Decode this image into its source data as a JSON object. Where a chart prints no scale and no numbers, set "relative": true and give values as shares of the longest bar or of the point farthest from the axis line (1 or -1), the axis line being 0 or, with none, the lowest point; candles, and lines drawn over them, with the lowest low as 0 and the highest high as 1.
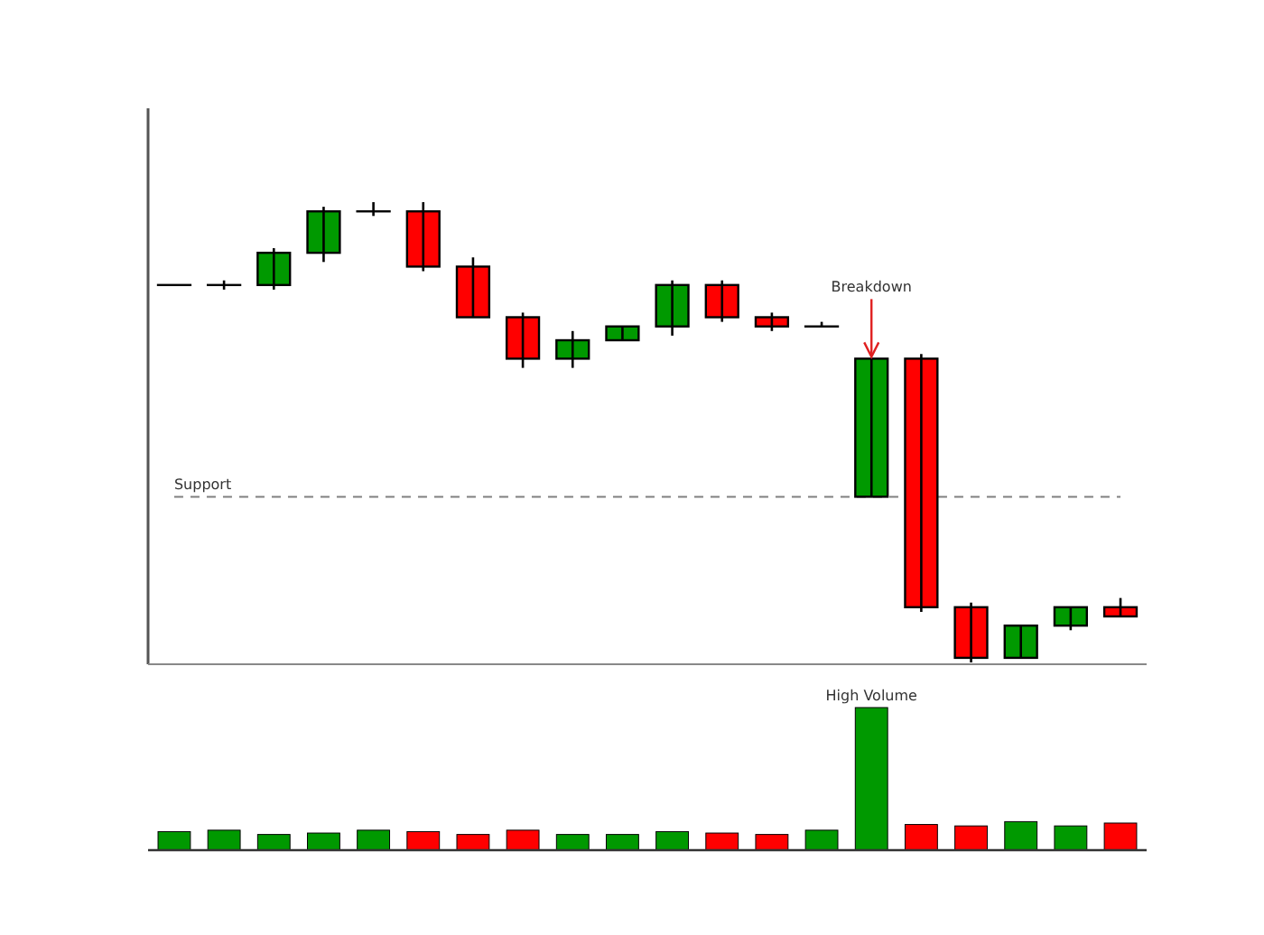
{
  "chart_data": [
    {
      "type": "candlestick",
      "relative": true,
      "categories": [
        null,
        null,
        null,
        null,
        null,
        null,
        null,
        null,
        null,
        null,
        null,
        null,
        null,
        null,
        null,
        null,
        null,
        null,
        null,
        null
      ],
      "ohlc": [
        [
          0.82,
          0.82,
          0.82,
          0.82
        ],
        [
          0.82,
          0.83,
          0.81,
          0.82
        ],
        [
          0.82,
          0.9,
          0.81,
          0.89
        ],
        [
          0.89,
          0.99,
          0.87,
          0.98
        ],
        [
          0.98,
          1,
          0.97,
          0.98
        ],
        [
          0.98,
          1,
          0.85,
          0.86
        ],
        [
          0.86,
          0.88,
          0.75,
          0.75
        ],
        [
          0.75,
          0.76,
          0.64,
          0.66
        ],
        [
          0.66,
          0.72,
          0.64,
          0.7
        ],
        [
          0.7,
          0.73,
          0.7,
          0.73
        ],
        [
          0.73,
          0.83,
          0.71,
          0.82
        ],
        [
          0.82,
          0.83,
          0.74,
          0.75
        ],
        [
          0.75,
          0.76,
          0.72,
          0.73
        ],
        [
          0.73,
          0.74,
          0.73,
          0.73
        ],
        [
          0.36,
          0.66,
          0.36,
          0.66
        ],
        [
          0.66,
          0.67,
          0.11,
          0.12
        ],
        [
          0.12,
          0.13,
          0,
          0.01
        ],
        [
          0.01,
          0.08,
          0.01,
          0.08
        ],
        [
          0.08,
          0.12,
          0.07,
          0.12
        ],
        [
          0.12,
          0.14,
          0.1,
          0.1
        ]
      ],
      "colors": [
        "#009900",
        "#009900",
        "#009900",
        "#009900",
        "#009900",
        "#ff0000",
        "#ff0000",
        "#ff0000",
        "#009900",
        "#009900",
        "#009900",
        "#ff0000",
        "#ff0000",
        "#009900",
        "#009900",
        "#ff0000",
        "#ff0000",
        "#009900",
        "#009900",
        "#ff0000"
      ],
      "ref_lines": [
        {
          "axis": "y",
          "value": 0.36,
          "label": "Support",
          "color": "#808080",
          "line_style": "dashed"
        }
      ],
      "annotations": [
        {
          "text": "Breakdown",
          "y": 0.66
        }
      ]
    },
    {
      "type": "bar",
      "relative": true,
      "categories": [
        null,
        null,
        null,
        null,
        null,
        null,
        null,
        null,
        null,
        null,
        null,
        null,
        null,
        null,
        null,
        null,
        null,
        null,
        null,
        null
      ],
      "values": [
        0.13,
        0.14,
        0.11,
        0.12,
        0.14,
        0.13,
        0.11,
        0.14,
        0.11,
        0.11,
        0.13,
        0.12,
        0.11,
        0.14,
        1,
        0.18,
        0.17,
        0.2,
        0.17,
        0.19
      ],
      "colors": [
        "#009900",
        "#009900",
        "#009900",
        "#009900",
        "#009900",
        "#ff0000",
        "#ff0000",
        "#ff0000",
        "#009900",
        "#009900",
        "#009900",
        "#ff0000",
        "#ff0000",
        "#009900",
        "#009900",
        "#ff0000",
        "#ff0000",
        "#009900",
        "#009900",
        "#ff0000"
      ],
      "annotations": [
        {
          "text": "High Volume",
          "y": 1
        }
      ]
    }
  ]
}
